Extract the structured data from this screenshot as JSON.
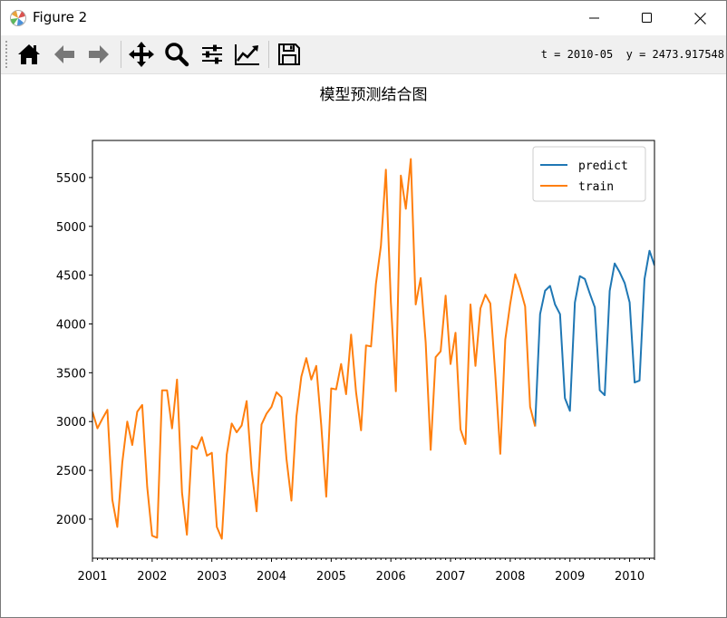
{
  "window": {
    "title": "Figure 2",
    "icon": "matplotlib-logo-icon",
    "controls": [
      "minimize-icon",
      "maximize-icon",
      "close-icon"
    ]
  },
  "toolbar": {
    "buttons": [
      {
        "name": "home",
        "icon": "home-icon"
      },
      {
        "name": "back",
        "icon": "arrow-left-icon"
      },
      {
        "name": "forward",
        "icon": "arrow-right-icon"
      },
      {
        "name": "pan",
        "icon": "move-icon"
      },
      {
        "name": "zoom",
        "icon": "magnifier-icon"
      },
      {
        "name": "subplots",
        "icon": "sliders-icon"
      },
      {
        "name": "edit-axes",
        "icon": "line-chart-icon"
      },
      {
        "name": "save",
        "icon": "floppy-disk-icon"
      }
    ],
    "coordinate_readout": "t = 2010-05  y = 2473.917548"
  },
  "chart_data": {
    "type": "line",
    "title": "模型预测结合图",
    "xlabel": "",
    "ylabel": "",
    "xlim": [
      "2001-01",
      "2010-06"
    ],
    "ylim": [
      1600,
      5880
    ],
    "x_ticks": [
      "2001",
      "2002",
      "2003",
      "2004",
      "2005",
      "2006",
      "2007",
      "2008",
      "2009",
      "2010"
    ],
    "y_ticks": [
      2000,
      2500,
      3000,
      3500,
      4000,
      4500,
      5000,
      5500
    ],
    "grid": false,
    "legend_position": "top-right",
    "series": [
      {
        "name": "predict",
        "color": "#1f77b4",
        "start": "2008-06",
        "values": [
          2950,
          4100,
          4340,
          4390,
          4200,
          4100,
          3240,
          3110,
          4220,
          4490,
          4460,
          4310,
          4170,
          3320,
          3270,
          4340,
          4620,
          4530,
          4420,
          4220,
          3400,
          3420,
          4460,
          4750,
          4600
        ]
      },
      {
        "name": "train",
        "color": "#ff7f0e",
        "start": "2001-01",
        "values": [
          3100,
          2930,
          3030,
          3120,
          2200,
          1920,
          2580,
          3000,
          2760,
          3100,
          3170,
          2330,
          1830,
          1810,
          3320,
          3320,
          2930,
          3430,
          2270,
          1840,
          2750,
          2720,
          2840,
          2650,
          2680,
          1920,
          1800,
          2660,
          2980,
          2890,
          2960,
          3210,
          2500,
          2080,
          2970,
          3080,
          3150,
          3300,
          3250,
          2620,
          2190,
          3050,
          3460,
          3650,
          3430,
          3570,
          2960,
          2230,
          3340,
          3330,
          3590,
          3280,
          3890,
          3300,
          2910,
          3780,
          3770,
          4410,
          4800,
          5580,
          4220,
          3310,
          5520,
          5180,
          5690,
          4200,
          4470,
          3810,
          2710,
          3660,
          3720,
          4290,
          3590,
          3910,
          2920,
          2770,
          4200,
          3570,
          4160,
          4300,
          4210,
          3480,
          2670,
          3840,
          4210,
          4510,
          4360,
          4180,
          3150,
          2950
        ]
      }
    ]
  }
}
